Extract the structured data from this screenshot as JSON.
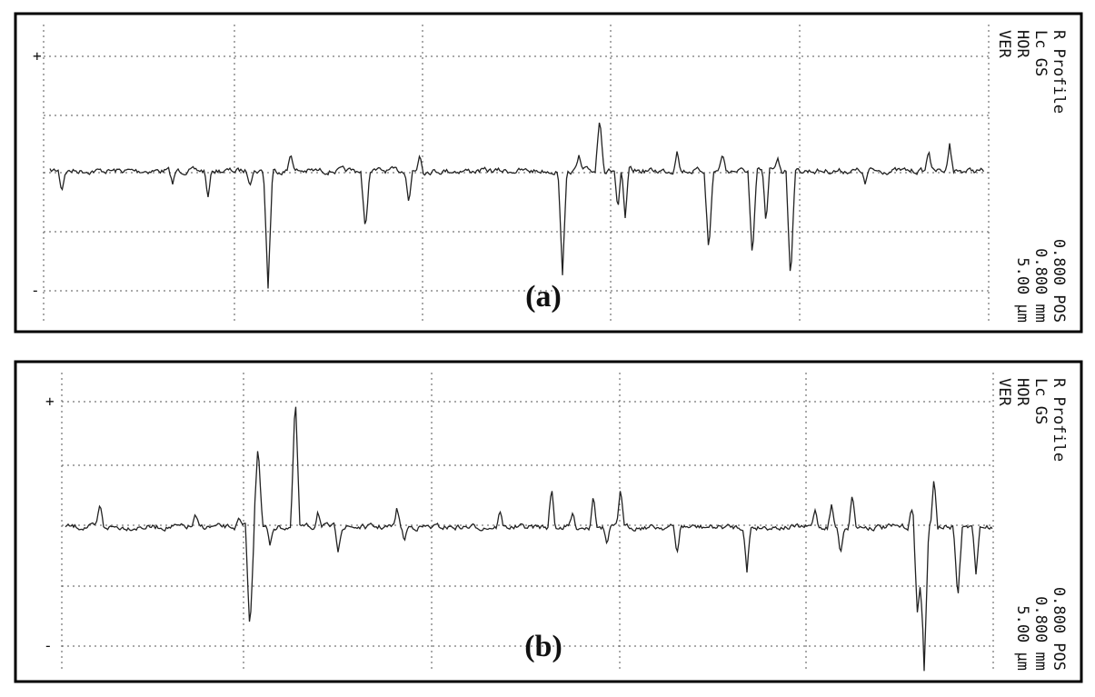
{
  "panels": [
    {
      "label": "(a)",
      "plus": "+",
      "minus": "-",
      "info_top": [
        "R Profile",
        "Lc     GS",
        "HOR",
        "VER"
      ],
      "info_bottom": [
        "0.800 POS",
        "0.800 mm",
        "5.00 µm"
      ]
    },
    {
      "label": "(b)",
      "plus": "+",
      "minus": "-",
      "info_top": [
        "R Profile",
        "Lc     GS",
        "HOR",
        "VER"
      ],
      "info_bottom": [
        "0.800 POS",
        "0.800 mm",
        "5.00 µm"
      ]
    }
  ]
}
